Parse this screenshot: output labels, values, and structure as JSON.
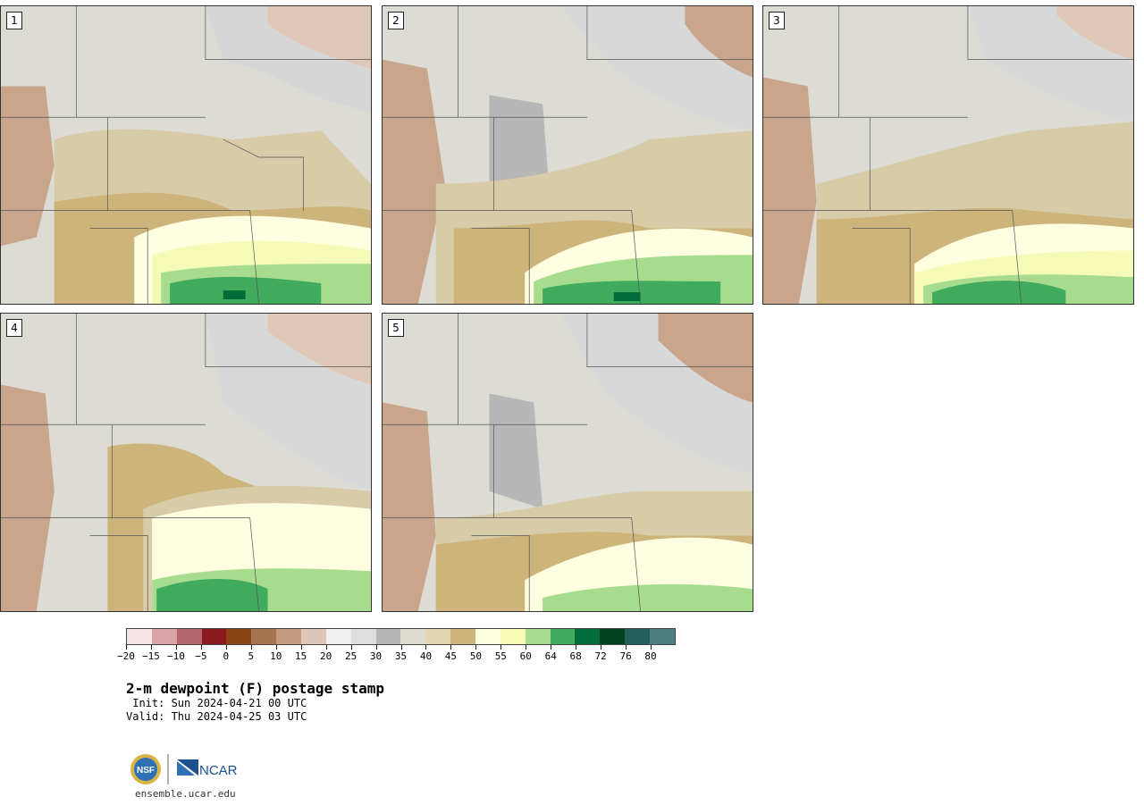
{
  "panels": [
    {
      "label": "1"
    },
    {
      "label": "2"
    },
    {
      "label": "3"
    },
    {
      "label": "4"
    },
    {
      "label": "5"
    }
  ],
  "colorbar": {
    "colors": [
      "#f5e6e8",
      "#d9a3a8",
      "#b5656b",
      "#8b1a1f",
      "#8c4513",
      "#a8744f",
      "#c49b80",
      "#dfc6b6",
      "#efefef",
      "#dedede",
      "#b7b7b7",
      "#dedcd1",
      "#e4d6b2",
      "#cdb47a",
      "#fefee0",
      "#f5fbb7",
      "#a7dc8e",
      "#41ab5d",
      "#006d38",
      "#00411f",
      "#225e5e",
      "#4f7f82"
    ],
    "tick_labels": [
      "−20",
      "−15",
      "−10",
      "−5",
      "0",
      "5",
      "10",
      "15",
      "20",
      "25",
      "30",
      "35",
      "40",
      "45",
      "50",
      "55",
      "60",
      "64",
      "68",
      "72",
      "76",
      "80"
    ]
  },
  "title": "2-m dewpoint (F) postage stamp",
  "init": " Init: Sun 2024-04-21 00 UTC",
  "valid": "Valid: Thu 2024-04-25 03 UTC",
  "logos": {
    "left": "NSF",
    "right": "NCAR"
  },
  "site": "ensemble.ucar.edu"
}
